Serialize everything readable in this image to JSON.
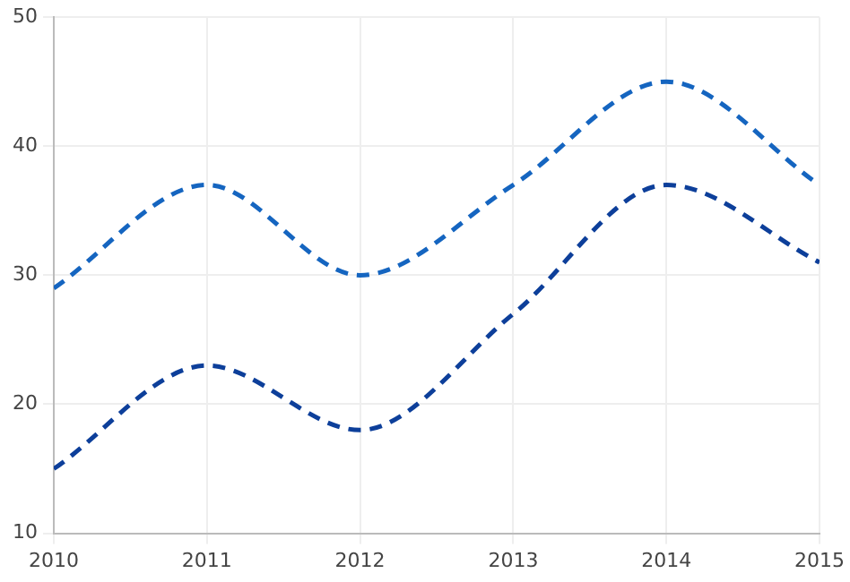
{
  "chart_data": {
    "type": "line",
    "x": [
      2010,
      2011,
      2012,
      2013,
      2014,
      2015
    ],
    "series": [
      {
        "color": "#1565c0",
        "values": [
          29,
          37,
          30,
          37,
          45,
          37
        ]
      },
      {
        "color": "#0d3f9a",
        "values": [
          15,
          23,
          18,
          27,
          37,
          31
        ]
      }
    ],
    "xlim": [
      2010,
      2015
    ],
    "xticks": [
      2010,
      2011,
      2012,
      2013,
      2014,
      2015
    ],
    "ylim": [
      10,
      50
    ],
    "yticks": [
      10,
      20,
      30,
      40,
      50
    ],
    "grid": true,
    "legend": false,
    "marker": "none",
    "line_style": "dashed"
  }
}
